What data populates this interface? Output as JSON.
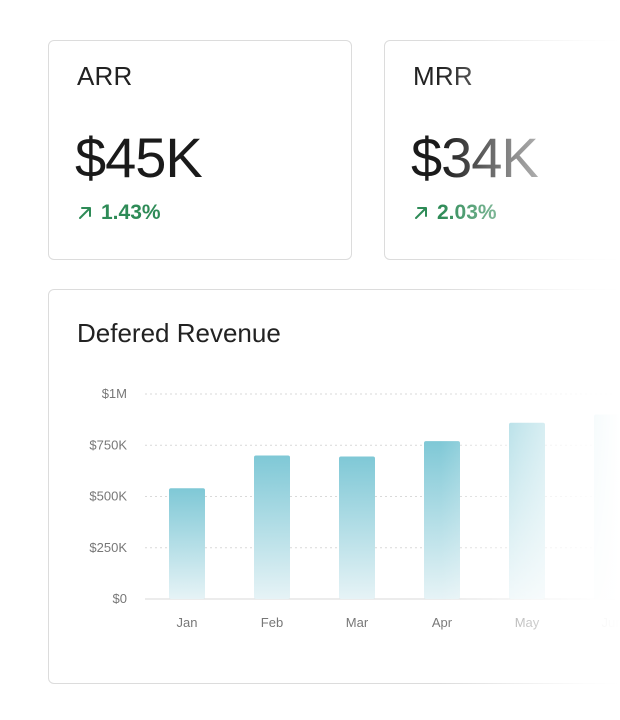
{
  "metrics": [
    {
      "label": "ARR",
      "value": "$45K",
      "change": "1.43%"
    },
    {
      "label": "MRR",
      "value": "$34K",
      "change": "2.03%"
    }
  ],
  "colors": {
    "positive": "#2e8b57",
    "bar_top": "#7fc8d6",
    "bar_bottom": "#e6f3f6",
    "grid": "#d9d9d9",
    "axis_text": "#777777"
  },
  "icons": {
    "trend": "arrow-up-right-icon"
  },
  "chart_data": {
    "type": "bar",
    "title": "Defered Revenue",
    "categories": [
      "Jan",
      "Feb",
      "Mar",
      "Apr",
      "May",
      "Jun"
    ],
    "values": [
      540000,
      700000,
      695000,
      770000,
      860000,
      900000
    ],
    "y_ticks": [
      0,
      250000,
      500000,
      750000,
      1000000
    ],
    "y_tick_labels": [
      "$0",
      "$250K",
      "$500K",
      "$750K",
      "$1M"
    ],
    "ylim": [
      0,
      1000000
    ],
    "xlabel": "",
    "ylabel": "",
    "grid": true
  }
}
